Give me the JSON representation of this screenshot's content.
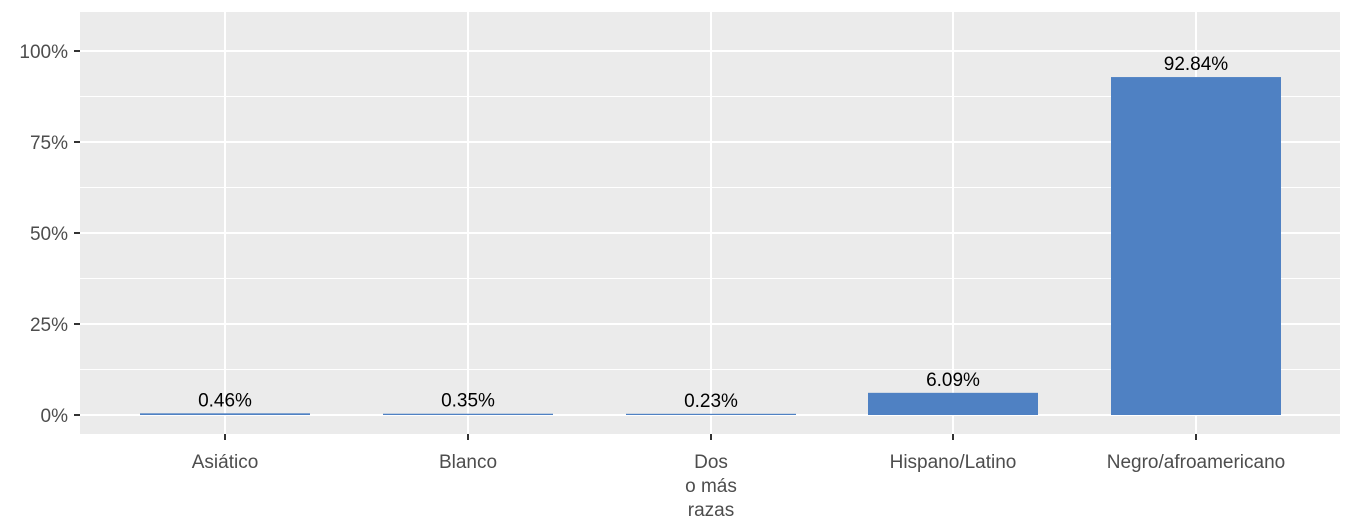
{
  "chart_data": {
    "type": "bar",
    "categories": [
      [
        "Asiático"
      ],
      [
        "Blanco"
      ],
      [
        "Dos",
        "o más",
        "razas"
      ],
      [
        "Hispano/Latino"
      ],
      [
        "Negro/afroamericano"
      ]
    ],
    "values": [
      0.46,
      0.35,
      0.23,
      6.09,
      92.84
    ],
    "data_labels": [
      "0.46%",
      "0.35%",
      "0.23%",
      "6.09%",
      "92.84%"
    ],
    "yticks": [
      0,
      25,
      50,
      75,
      100
    ],
    "ytick_labels": [
      "0%",
      "25%",
      "50%",
      "75%",
      "100%"
    ],
    "ylim": [
      0,
      110
    ],
    "title": "",
    "xlabel": "",
    "ylabel": "",
    "grid": true,
    "legend": "none",
    "colors": {
      "bar": "#4f81c3",
      "panel": "#ebebeb",
      "grid": "#ffffff",
      "tick_text": "#4d4d4d",
      "label_text": "#000000"
    }
  }
}
